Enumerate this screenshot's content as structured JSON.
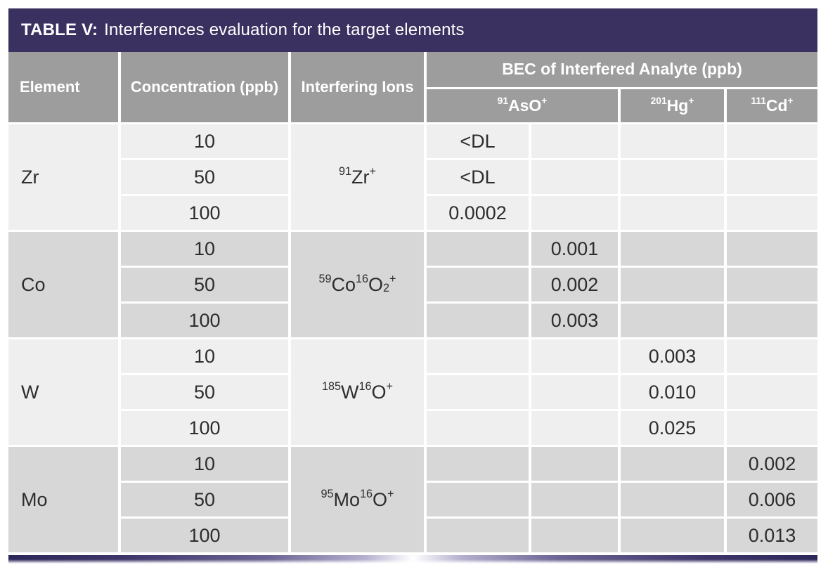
{
  "title": {
    "label": "TABLE V:",
    "text": "Interferences evaluation for the target elements"
  },
  "header": {
    "element": "Element",
    "concentration": "Concentration (ppb)",
    "interfering": "Interfering Ions",
    "bec_group": "BEC of Interfered Analyte (ppb)",
    "analytes": [
      {
        "name": "91AsO+",
        "span": 2,
        "segments": [
          [
            "91",
            "sup"
          ],
          [
            "AsO",
            ""
          ],
          [
            "+",
            "sup"
          ]
        ]
      },
      {
        "name": "201Hg+",
        "span": 1,
        "segments": [
          [
            "201",
            "sup"
          ],
          [
            "Hg",
            ""
          ],
          [
            "+",
            "sup"
          ]
        ]
      },
      {
        "name": "111Cd+",
        "span": 1,
        "segments": [
          [
            "111",
            "sup"
          ],
          [
            "Cd",
            ""
          ],
          [
            "+",
            "sup"
          ]
        ]
      }
    ]
  },
  "groups": [
    {
      "element": "Zr",
      "ion_name": "91Zr+",
      "ion_segments": [
        [
          "91",
          "sup"
        ],
        [
          "Zr",
          ""
        ],
        [
          "+",
          "sup"
        ]
      ],
      "rows": [
        {
          "concentration": "10",
          "bec": [
            "<DL",
            "",
            "",
            ""
          ]
        },
        {
          "concentration": "50",
          "bec": [
            "<DL",
            "",
            "",
            ""
          ]
        },
        {
          "concentration": "100",
          "bec": [
            "0.0002",
            "",
            "",
            ""
          ]
        }
      ]
    },
    {
      "element": "Co",
      "ion_name": "59Co16O2+",
      "ion_segments": [
        [
          "59",
          "sup"
        ],
        [
          "Co",
          ""
        ],
        [
          "16",
          "sup"
        ],
        [
          "O",
          ""
        ],
        [
          "2",
          "sub"
        ],
        [
          "+",
          "sup"
        ]
      ],
      "rows": [
        {
          "concentration": "10",
          "bec": [
            "",
            "0.001",
            "",
            ""
          ]
        },
        {
          "concentration": "50",
          "bec": [
            "",
            "0.002",
            "",
            ""
          ]
        },
        {
          "concentration": "100",
          "bec": [
            "",
            "0.003",
            "",
            ""
          ]
        }
      ]
    },
    {
      "element": "W",
      "ion_name": "185W16O+",
      "ion_segments": [
        [
          "185",
          "sup"
        ],
        [
          "W",
          ""
        ],
        [
          "16",
          "sup"
        ],
        [
          "O",
          ""
        ],
        [
          "+",
          "sup"
        ]
      ],
      "rows": [
        {
          "concentration": "10",
          "bec": [
            "",
            "",
            "0.003",
            ""
          ]
        },
        {
          "concentration": "50",
          "bec": [
            "",
            "",
            "0.010",
            ""
          ]
        },
        {
          "concentration": "100",
          "bec": [
            "",
            "",
            "0.025",
            ""
          ]
        }
      ]
    },
    {
      "element": "Mo",
      "ion_name": "95Mo16O+",
      "ion_segments": [
        [
          "95",
          "sup"
        ],
        [
          "Mo",
          ""
        ],
        [
          "16",
          "sup"
        ],
        [
          "O",
          ""
        ],
        [
          "+",
          "sup"
        ]
      ],
      "rows": [
        {
          "concentration": "10",
          "bec": [
            "",
            "",
            "",
            "0.002"
          ]
        },
        {
          "concentration": "50",
          "bec": [
            "",
            "",
            "",
            "0.006"
          ]
        },
        {
          "concentration": "100",
          "bec": [
            "",
            "",
            "",
            "0.013"
          ]
        }
      ]
    }
  ],
  "colors": {
    "title_bar": "#3a3160",
    "header_bg": "#9d9d9d",
    "header_text": "#ffffff",
    "row_light": "#f0efef",
    "row_dark": "#d8d7d7",
    "body_text": "#2d2d2d",
    "accent_dark": "#2c275a"
  }
}
